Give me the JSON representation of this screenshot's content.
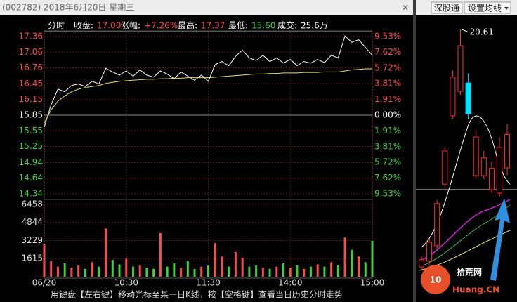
{
  "window": {
    "title": "(002782) 2018年6月20日 星期三",
    "close": "×"
  },
  "toolbar": {
    "buttons": [
      "深股通",
      "设置均线"
    ]
  },
  "header": {
    "mode": "分时",
    "items": [
      {
        "label": "收盘:",
        "value": "17.00",
        "color": "#ff4a4a"
      },
      {
        "label": "涨幅:",
        "value": "+7.26%",
        "color": "#ff4a4a"
      },
      {
        "label": "最高:",
        "value": "17.37",
        "color": "#ff4a4a"
      },
      {
        "label": "最低:",
        "value": "15.60",
        "color": "#3cd23c"
      },
      {
        "label": "成交:",
        "value": "25.6万",
        "color": "#ffffff"
      }
    ]
  },
  "chart_data": [
    {
      "type": "line",
      "x": [
        0,
        5,
        10,
        15,
        20,
        25,
        30,
        35,
        40,
        45,
        50,
        55,
        60,
        65,
        70,
        75,
        80,
        85,
        90,
        95,
        100,
        105,
        110,
        115,
        120,
        125,
        130,
        135,
        140,
        145,
        150,
        155,
        160,
        165,
        170,
        175,
        180,
        185,
        190,
        195,
        200,
        205,
        210,
        215,
        220,
        225,
        230,
        235,
        240
      ],
      "xlim": [
        0,
        240
      ],
      "xticks": [
        {
          "value": 0,
          "label": "06/20"
        },
        {
          "value": 60,
          "label": "10:30"
        },
        {
          "value": 120,
          "label": "11:30"
        },
        {
          "value": 180,
          "label": "14:00"
        },
        {
          "value": 240,
          "label": "15:00"
        }
      ],
      "ylim": [
        14.34,
        17.36
      ],
      "yticks": [
        17.36,
        17.06,
        16.76,
        16.45,
        16.15,
        15.85,
        15.55,
        15.25,
        14.94,
        14.64,
        14.34
      ],
      "y2lim": [
        -9.53,
        9.53
      ],
      "y2ticks": [
        {
          "value": 9.53,
          "label": "9.53%"
        },
        {
          "value": 7.62,
          "label": "7.62%"
        },
        {
          "value": 5.72,
          "label": "5.72%"
        },
        {
          "value": 3.81,
          "label": "3.81%"
        },
        {
          "value": 1.91,
          "label": "1.91%"
        },
        {
          "value": 0,
          "label": "0.00%"
        },
        {
          "value": -1.91,
          "label": "1.91%"
        },
        {
          "value": -3.81,
          "label": "3.81%"
        },
        {
          "value": -5.72,
          "label": "5.72%"
        },
        {
          "value": -7.62,
          "label": "7.62%"
        },
        {
          "value": -9.53,
          "label": "9.53%"
        }
      ],
      "series": [
        {
          "color": "#ffffff",
          "values": [
            15.62,
            16.05,
            16.35,
            16.3,
            16.42,
            16.45,
            16.4,
            16.5,
            16.45,
            16.75,
            16.68,
            16.62,
            16.7,
            16.6,
            16.72,
            16.62,
            16.58,
            16.7,
            16.64,
            16.55,
            16.68,
            16.6,
            16.52,
            16.62,
            16.5,
            16.82,
            16.88,
            16.8,
            16.98,
            17.1,
            16.95,
            16.9,
            17.0,
            16.88,
            16.95,
            16.85,
            16.92,
            16.8,
            16.88,
            16.85,
            16.92,
            16.86,
            17.0,
            16.95,
            17.37,
            17.25,
            17.3,
            17.15,
            17.0
          ]
        },
        {
          "color": "#e0e070",
          "values": [
            15.7,
            15.95,
            16.12,
            16.22,
            16.3,
            16.35,
            16.38,
            16.4,
            16.42,
            16.46,
            16.48,
            16.5,
            16.51,
            16.52,
            16.53,
            16.54,
            16.54,
            16.55,
            16.55,
            16.56,
            16.56,
            16.57,
            16.57,
            16.57,
            16.57,
            16.58,
            16.59,
            16.6,
            16.61,
            16.62,
            16.63,
            16.64,
            16.64,
            16.65,
            16.65,
            16.66,
            16.66,
            16.66,
            16.67,
            16.67,
            16.67,
            16.68,
            16.68,
            16.68,
            16.7,
            16.72,
            16.73,
            16.74,
            16.74
          ]
        }
      ]
    },
    {
      "type": "bar",
      "x": [
        0,
        5,
        10,
        15,
        20,
        25,
        30,
        35,
        40,
        45,
        50,
        55,
        60,
        65,
        70,
        75,
        80,
        85,
        90,
        95,
        100,
        105,
        110,
        115,
        120,
        125,
        130,
        135,
        140,
        145,
        150,
        155,
        160,
        165,
        170,
        175,
        180,
        185,
        190,
        195,
        200,
        205,
        210,
        215,
        220,
        225,
        230,
        235,
        240
      ],
      "xlim": [
        0,
        240
      ],
      "values": [
        2900,
        1400,
        900,
        1200,
        800,
        1000,
        700,
        1300,
        900,
        4300,
        1500,
        1100,
        1600,
        900,
        1000,
        800,
        700,
        3900,
        900,
        1200,
        800,
        1400,
        700,
        900,
        1000,
        3000,
        1800,
        900,
        2200,
        1700,
        900,
        1000,
        800,
        700,
        900,
        1200,
        800,
        1000,
        700,
        900,
        1100,
        900,
        1300,
        1000,
        3500,
        2400,
        1800,
        1300,
        3200
      ],
      "ylim": [
        0,
        6458
      ],
      "yticks": [
        6458,
        4844,
        3229,
        1615
      ],
      "color_up": "#ff4a4a",
      "color_down": "#3cd23c"
    },
    {
      "type": "candlestick",
      "ylim": [
        12.2,
        20.85
      ],
      "color_up": "#ff3030",
      "color_down": "#00e0ff",
      "annotation": "20.61",
      "candles": [
        {
          "open": 12.44,
          "close": 12.69,
          "high": 12.81,
          "low": 12.32
        },
        {
          "open": 12.64,
          "close": 13.29,
          "high": 13.41,
          "low": 12.49
        },
        {
          "open": 13.17,
          "close": 14.62,
          "high": 14.74,
          "low": 13.05
        },
        {
          "open": 15.29,
          "close": 16.43,
          "high": 16.55,
          "low": 15.15
        },
        {
          "open": 17.64,
          "close": 18.97,
          "high": 19.21,
          "low": 17.52
        },
        {
          "open": 18.48,
          "close": 20.05,
          "high": 20.61,
          "low": 18.36
        },
        {
          "open": 18.77,
          "close": 17.71,
          "high": 19.09,
          "low": 17.52
        },
        {
          "open": 15.58,
          "close": 16.91,
          "high": 17.15,
          "low": 15.46
        },
        {
          "open": 15.58,
          "close": 16.19,
          "high": 16.43,
          "low": 15.46
        },
        {
          "open": 15.1,
          "close": 15.83,
          "high": 16.07,
          "low": 14.98
        },
        {
          "open": 14.98,
          "close": 16.55,
          "high": 16.91,
          "low": 14.86
        },
        {
          "open": 15.85,
          "close": 17.0,
          "high": 17.37,
          "low": 15.6
        }
      ]
    }
  ],
  "watermark": {
    "logo": "10",
    "name": "拾荒网",
    "domain": "Huang.CN"
  },
  "footer": {
    "hint": "用键盘【左右键】移动光标至某一日K线，按【空格键】查看当日历史分时走势"
  }
}
